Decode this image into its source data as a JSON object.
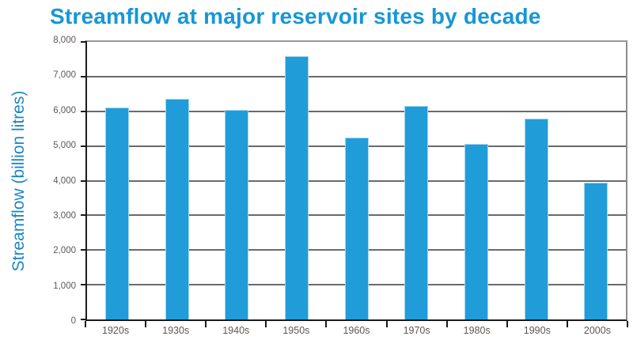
{
  "title": "Streamflow at major reservoir sites by decade",
  "colors": {
    "title_blue": "#1697d6",
    "y_axis_title_blue": "#1a86c8",
    "bar_fill": "#209cd8",
    "bar_edge": "#9fd7f1",
    "gridline": "#6a6a6a",
    "frame_gray": "#9a9a9a",
    "axis_black": "#1a1a1a",
    "tick_label_gray": "#5d5856"
  },
  "chart_data": {
    "type": "bar",
    "title": "Streamflow at major reservoir sites by decade",
    "categories": [
      "1920s",
      "1930s",
      "1940s",
      "1950s",
      "1960s",
      "1970s",
      "1980s",
      "1990s",
      "2000s"
    ],
    "values": [
      6100,
      6350,
      6050,
      7600,
      5250,
      6150,
      5050,
      5800,
      3950
    ],
    "xlabel": "",
    "ylabel": "Streamflow (billion litres)",
    "ylim": [
      0,
      8000
    ],
    "ytick_interval": 1000,
    "ytick_labels": [
      "0",
      "1,000",
      "2,000",
      "3,000",
      "4,000",
      "5,000",
      "6,000",
      "7,000",
      "8,000"
    ],
    "grid": true,
    "legend": false
  }
}
